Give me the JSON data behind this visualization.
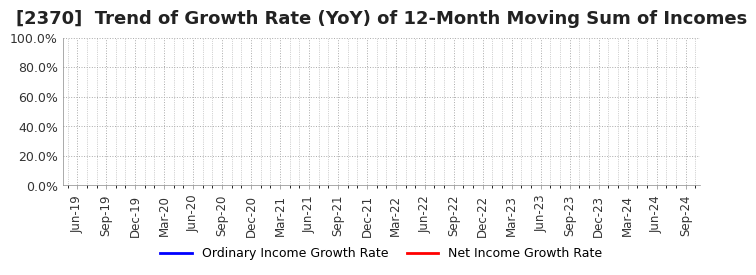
{
  "title": "[2370]  Trend of Growth Rate (YoY) of 12-Month Moving Sum of Incomes",
  "title_fontsize": 13,
  "title_color": "#222222",
  "background_color": "#ffffff",
  "plot_background_color": "#ffffff",
  "ylim": [
    0.0,
    1.0
  ],
  "yticks": [
    0.0,
    0.2,
    0.4,
    0.6,
    0.8,
    1.0
  ],
  "ytick_labels": [
    "0.0%",
    "20.0%",
    "40.0%",
    "60.0%",
    "80.0%",
    "100.0%"
  ],
  "x_labels": [
    "Jun-19",
    "Sep-19",
    "Dec-19",
    "Mar-20",
    "Jun-20",
    "Sep-20",
    "Dec-20",
    "Mar-21",
    "Jun-21",
    "Sep-21",
    "Dec-21",
    "Mar-22",
    "Jun-22",
    "Sep-22",
    "Dec-22",
    "Mar-23",
    "Jun-23",
    "Sep-23",
    "Dec-23",
    "Mar-24",
    "Jun-24",
    "Sep-24"
  ],
  "grid_color": "#aaaaaa",
  "grid_style": "dotted",
  "ordinary_income_color": "#0000ff",
  "net_income_color": "#ff0000",
  "legend_ordinary": "Ordinary Income Growth Rate",
  "legend_net": "Net Income Growth Rate",
  "ordinary_income_values": [
    null,
    null,
    null,
    null,
    null,
    null,
    null,
    null,
    null,
    null,
    null,
    null,
    null,
    null,
    null,
    null,
    null,
    null,
    null,
    null,
    null,
    null
  ],
  "net_income_values": [
    null,
    null,
    null,
    null,
    null,
    null,
    null,
    null,
    null,
    null,
    null,
    null,
    null,
    null,
    null,
    null,
    null,
    null,
    null,
    null,
    null,
    null
  ]
}
